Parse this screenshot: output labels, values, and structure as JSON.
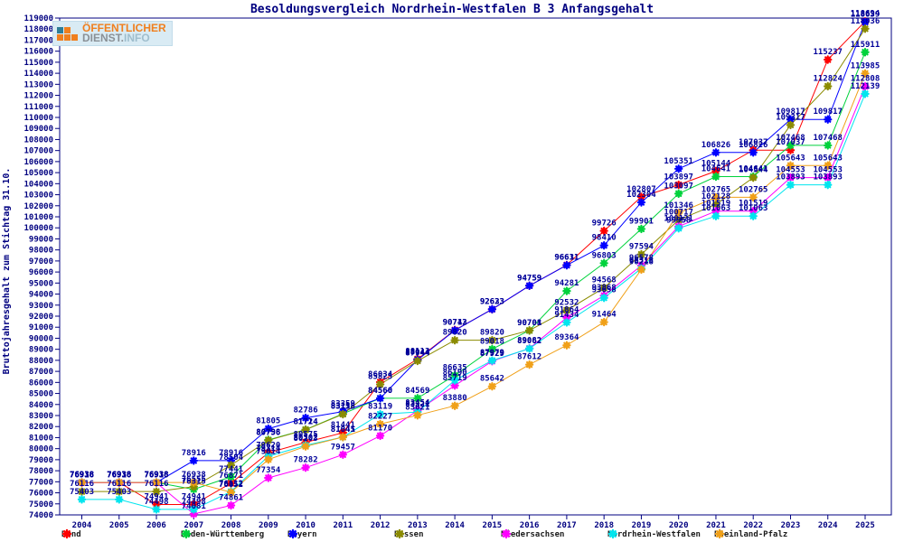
{
  "title": "Besoldungsvergleich Nordrhein-Westfalen B 3 Anfangsgehalt",
  "logo": {
    "line1": "ÖFFENTLICHER",
    "line2a": "DIENST.",
    "line2b": "INFO"
  },
  "y_axis": {
    "label": "Bruttojahresgehalt zum Stichtag 31.10.",
    "tick_min": 74000,
    "tick_max": 119000,
    "tick_step": 1000
  },
  "x_axis": {
    "years": [
      "2004",
      "2005",
      "2006",
      "2007",
      "2008",
      "2009",
      "2010",
      "2011",
      "2012",
      "2013",
      "2014",
      "2015",
      "2016",
      "2017",
      "2018",
      "2019",
      "2020",
      "2021",
      "2022",
      "2023",
      "2024",
      "2025"
    ]
  },
  "frame_color": "#000080",
  "label_color": "#000099",
  "chart_data": {
    "type": "line",
    "title": "Besoldungsvergleich Nordrhein-Westfalen B 3 Anfangsgehalt",
    "xlabel": "",
    "ylabel": "Bruttojahresgehalt zum Stichtag 31.10.",
    "ylim": [
      74000,
      119000
    ],
    "grid": false,
    "legend_position": "bottom",
    "point_labels": true,
    "categories": [
      2004,
      2005,
      2006,
      2007,
      2008,
      2009,
      2010,
      2011,
      2012,
      2013,
      2014,
      2015,
      2016,
      2017,
      2018,
      2019,
      2020,
      2021,
      2022,
      2023,
      2024,
      2025
    ],
    "series": [
      {
        "name": "Bund",
        "color": "#ff0000",
        "values": [
          76938,
          76938,
          74941,
          74941,
          76871,
          79620,
          80575,
          81441,
          86034,
          88113,
          90743,
          92623,
          94759,
          96631,
          99726,
          102807,
          103897,
          105144,
          107037,
          107037,
          115237,
          118694
        ]
      },
      {
        "name": "Baden-Württemberg",
        "color": "#00d23c",
        "values": [
          76938,
          76938,
          76938,
          76315,
          77441,
          80798,
          81724,
          83158,
          84560,
          84569,
          86635,
          89018,
          90701,
          94281,
          96803,
          99901,
          103097,
          104641,
          104641,
          107468,
          107468,
          115911
        ]
      },
      {
        "name": "Bayern",
        "color": "#0000ff",
        "values": [
          76938,
          76938,
          76938,
          78916,
          78916,
          81805,
          82786,
          83359,
          84560,
          88044,
          90712,
          92633,
          94759,
          96611,
          98410,
          102304,
          105351,
          106826,
          106826,
          109817,
          109817,
          118639
        ]
      },
      {
        "name": "Hessen",
        "color": "#8b8b00",
        "values": [
          76116,
          76116,
          76116,
          76555,
          78504,
          80756,
          81714,
          83118,
          85825,
          87944,
          89820,
          89820,
          90708,
          92532,
          94568,
          97594,
          100717,
          102128,
          104544,
          109317,
          112824,
          118036
        ]
      },
      {
        "name": "Niedersachsen",
        "color": "#ff00ff",
        "values": [
          76916,
          76916,
          76916,
          74081,
          74861,
          77354,
          78282,
          79457,
          81170,
          83454,
          85719,
          87929,
          89082,
          91864,
          93868,
          96578,
          100121,
          101519,
          101519,
          104553,
          104553,
          112808
        ]
      },
      {
        "name": "Nordrhein-Westfalen",
        "color": "#00e5ee",
        "values": [
          75403,
          75403,
          74498,
          74498,
          76112,
          79314,
          80302,
          81041,
          83119,
          83321,
          86190,
          87979,
          89062,
          91434,
          93658,
          96318,
          99958,
          101063,
          101063,
          103893,
          103893,
          112139
        ]
      },
      {
        "name": "Rheinland-Pfalz",
        "color": "#f0a018",
        "values": [
          76938,
          76938,
          76938,
          76938,
          76052,
          79014,
          80203,
          81045,
          82227,
          83021,
          83880,
          85642,
          87612,
          89364,
          91464,
          96218,
          101346,
          102765,
          102765,
          105643,
          105643,
          113985
        ]
      }
    ]
  }
}
